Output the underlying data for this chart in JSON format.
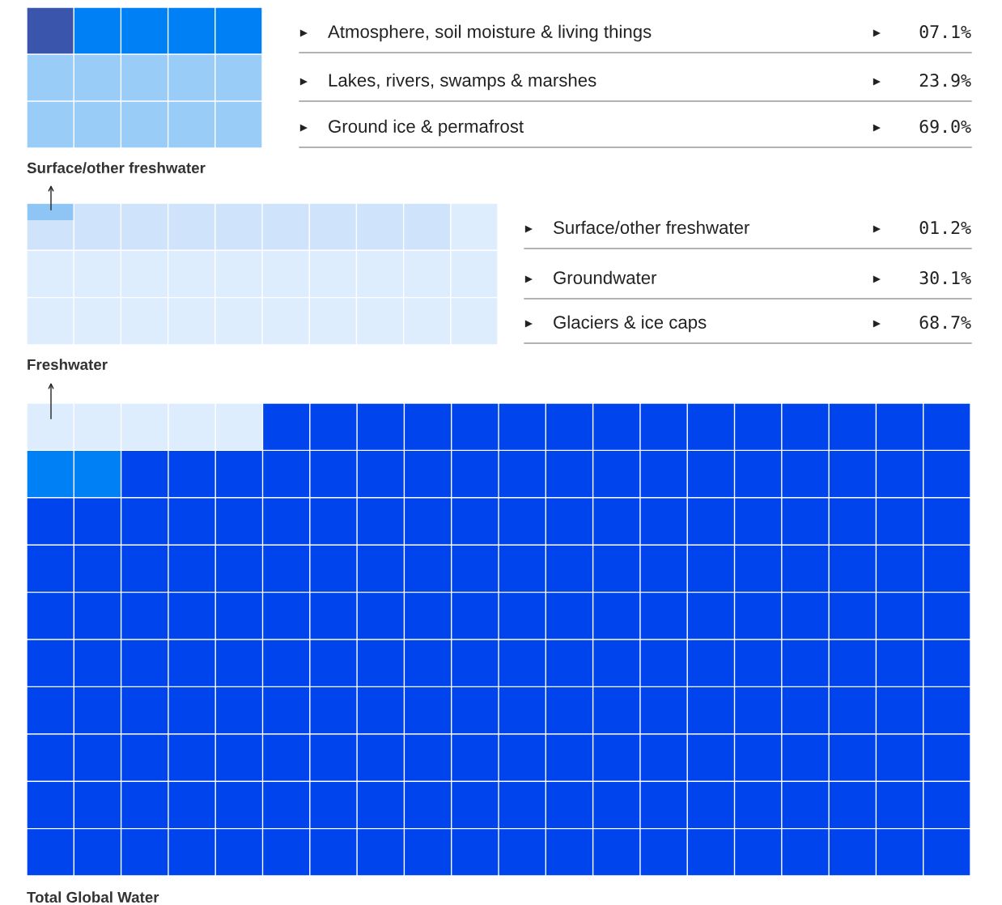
{
  "chart_data": [
    {
      "type": "other",
      "title": "Surface/other freshwater",
      "categories": [
        "Atmosphere, soil moisture & living things",
        "Lakes, rivers, swamps & marshes",
        "Ground ice & permafrost"
      ],
      "values": [
        7.1,
        23.9,
        69.0
      ],
      "value_labels": [
        "07.1%",
        "23.9%",
        "69.0%"
      ],
      "colors": [
        "#3a55ac",
        "#0080f5",
        "#99ccf7"
      ]
    },
    {
      "type": "other",
      "title": "Freshwater",
      "categories": [
        "Surface/other freshwater",
        "Groundwater",
        "Glaciers & ice caps"
      ],
      "values": [
        1.2,
        30.1,
        68.7
      ],
      "value_labels": [
        "01.2%",
        "30.1%",
        "68.7%"
      ],
      "colors": [
        "#8ec5f5",
        "#cfe3fa",
        "#deedfd"
      ]
    },
    {
      "type": "other",
      "title": "Total Global Water",
      "colors": [
        "#deedfd",
        "#0080f5",
        "#0044ee"
      ]
    }
  ]
}
